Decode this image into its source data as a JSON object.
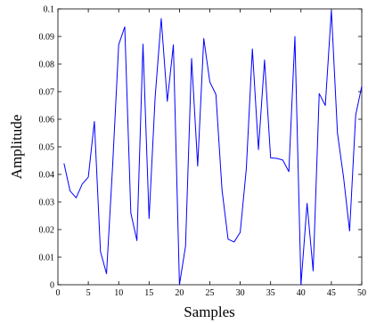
{
  "chart_data": {
    "type": "line",
    "xlabel": "Samples",
    "ylabel": "Amplitude",
    "xlim": [
      0,
      50
    ],
    "ylim": [
      0,
      0.1
    ],
    "xticks": [
      "0",
      "5",
      "10",
      "15",
      "20",
      "25",
      "30",
      "35",
      "40",
      "45",
      "50"
    ],
    "yticks": [
      "0",
      "0.01",
      "0.02",
      "0.03",
      "0.04",
      "0.05",
      "0.06",
      "0.07",
      "0.08",
      "0.09",
      "0.1"
    ],
    "grid": false,
    "series": [
      {
        "color": "#0000ff",
        "x": [
          1,
          2,
          3,
          4,
          5,
          6,
          7,
          8,
          9,
          10,
          11,
          12,
          13,
          14,
          15,
          16,
          17,
          18,
          19,
          20,
          21,
          22,
          23,
          24,
          25,
          26,
          27,
          28,
          29,
          30,
          31,
          32,
          33,
          34,
          35,
          36,
          37,
          38,
          39,
          40,
          41,
          42,
          43,
          44,
          45,
          46,
          47,
          48,
          49,
          50
        ],
        "y": [
          0.044,
          0.034,
          0.0315,
          0.0365,
          0.039,
          0.0592,
          0.012,
          0.004,
          0.043,
          0.087,
          0.0935,
          0.026,
          0.016,
          0.0872,
          0.024,
          0.068,
          0.0965,
          0.0665,
          0.087,
          0.0,
          0.014,
          0.082,
          0.043,
          0.0893,
          0.0735,
          0.069,
          0.0345,
          0.0165,
          0.0155,
          0.019,
          0.042,
          0.0855,
          0.049,
          0.0815,
          0.046,
          0.0458,
          0.0452,
          0.041,
          0.09,
          0.0,
          0.0295,
          0.005,
          0.0693,
          0.065,
          0.0995,
          0.055,
          0.039,
          0.0195,
          0.0615,
          0.072
        ]
      }
    ]
  }
}
